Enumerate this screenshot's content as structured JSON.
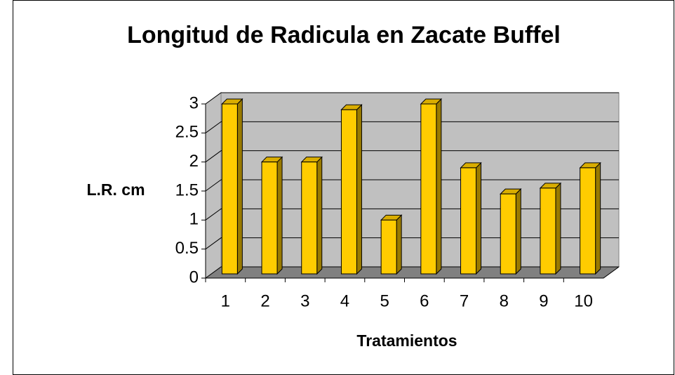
{
  "chart_data": {
    "type": "bar3d",
    "title": "Longitud de Radicula en Zacate Buffel",
    "x_label": "Tratamientos",
    "y_label": "L.R. cm",
    "categories": [
      "1",
      "2",
      "3",
      "4",
      "5",
      "6",
      "7",
      "8",
      "9",
      "10"
    ],
    "values": [
      3.0,
      2.0,
      2.0,
      2.9,
      1.0,
      3.0,
      1.9,
      1.45,
      1.55,
      1.9
    ],
    "color": "#ffcc00",
    "ylim": [
      0,
      3
    ],
    "yticks": [
      0,
      0.5,
      1,
      1.5,
      2,
      2.5,
      3
    ],
    "grid": true
  }
}
